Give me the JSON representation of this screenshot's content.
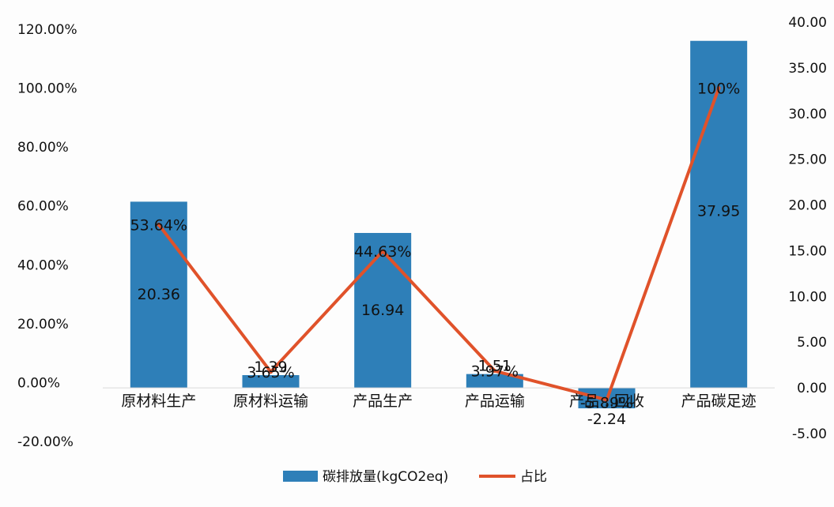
{
  "chart_data": {
    "type": "bar-line-combo",
    "categories": [
      "原材料生产",
      "原材料运输",
      "产品生产",
      "产品运输",
      "产品回收",
      "产品碳足迹"
    ],
    "category_labels_display": [
      "原材料生产",
      "原材料运输",
      "产品生产",
      "产品运输",
      "产品…回收",
      "产品碳足迹"
    ],
    "series": [
      {
        "name": "碳排放量(kgCO2eq)",
        "type": "bar",
        "axis": "right",
        "values": [
          20.36,
          1.39,
          16.94,
          1.51,
          -2.24,
          37.95
        ],
        "data_labels": [
          "20.36",
          "1.39",
          "16.94",
          "1.51",
          "-2.24",
          "37.95"
        ],
        "color": "#2e7fb8"
      },
      {
        "name": "占比",
        "type": "line",
        "axis": "left",
        "values": [
          53.64,
          3.65,
          44.63,
          3.97,
          -5.89,
          100
        ],
        "data_labels": [
          "53.64%",
          "3.65%",
          "44.63%",
          "3.97%",
          "-5.89%",
          "100%"
        ],
        "color": "#e0522a"
      }
    ],
    "y_left": {
      "range": [
        -20,
        120
      ],
      "ticks": [
        "-20.00%",
        "0.00%",
        "20.00%",
        "40.00%",
        "60.00%",
        "80.00%",
        "100.00%",
        "120.00%"
      ],
      "tick_values": [
        -20,
        0,
        20,
        40,
        60,
        80,
        100,
        120
      ]
    },
    "y_right": {
      "range": [
        -5,
        40
      ],
      "ticks": [
        "-5.00",
        "0.00",
        "5.00",
        "10.00",
        "15.00",
        "20.00",
        "25.00",
        "30.00",
        "35.00",
        "40.00"
      ],
      "tick_values": [
        -5,
        0,
        5,
        10,
        15,
        20,
        25,
        30,
        35,
        40
      ]
    },
    "grid": false,
    "legend_position": "bottom-center"
  }
}
